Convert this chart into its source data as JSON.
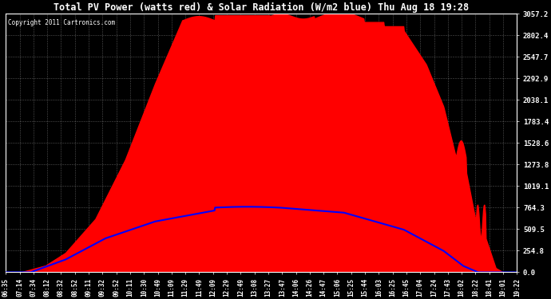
{
  "title": "Total PV Power (watts red) & Solar Radiation (W/m2 blue) Thu Aug 18 19:28",
  "copyright": "Copyright 2011 Cartronics.com",
  "bg_color": "#000000",
  "plot_bg_color": "#000000",
  "grid_color": "#888888",
  "yticks": [
    0.0,
    254.8,
    509.5,
    764.3,
    1019.1,
    1273.8,
    1528.6,
    1783.4,
    2038.1,
    2292.9,
    2547.7,
    2802.4,
    3057.2
  ],
  "ytick_labels": [
    "0.0",
    "254.8",
    "509.5",
    "764.3",
    "1019.1",
    "1273.8",
    "1528.6",
    "1783.4",
    "2038.1",
    "2292.9",
    "2547.7",
    "2802.4",
    "3057.2"
  ],
  "xtick_labels": [
    "06:35",
    "07:14",
    "07:34",
    "08:12",
    "08:32",
    "08:52",
    "09:11",
    "09:32",
    "09:52",
    "10:11",
    "10:30",
    "10:49",
    "11:09",
    "11:29",
    "11:49",
    "12:09",
    "12:29",
    "12:49",
    "13:08",
    "13:27",
    "13:47",
    "14:06",
    "14:26",
    "14:47",
    "15:06",
    "15:25",
    "15:44",
    "16:03",
    "16:25",
    "16:45",
    "17:04",
    "17:24",
    "17:43",
    "18:02",
    "18:22",
    "18:41",
    "19:01",
    "19:22"
  ],
  "pv_color": "#ff0000",
  "solar_color": "#0000ff",
  "ymax": 3057.2,
  "ymin": 0.0,
  "figwidth": 6.9,
  "figheight": 3.75,
  "dpi": 100
}
